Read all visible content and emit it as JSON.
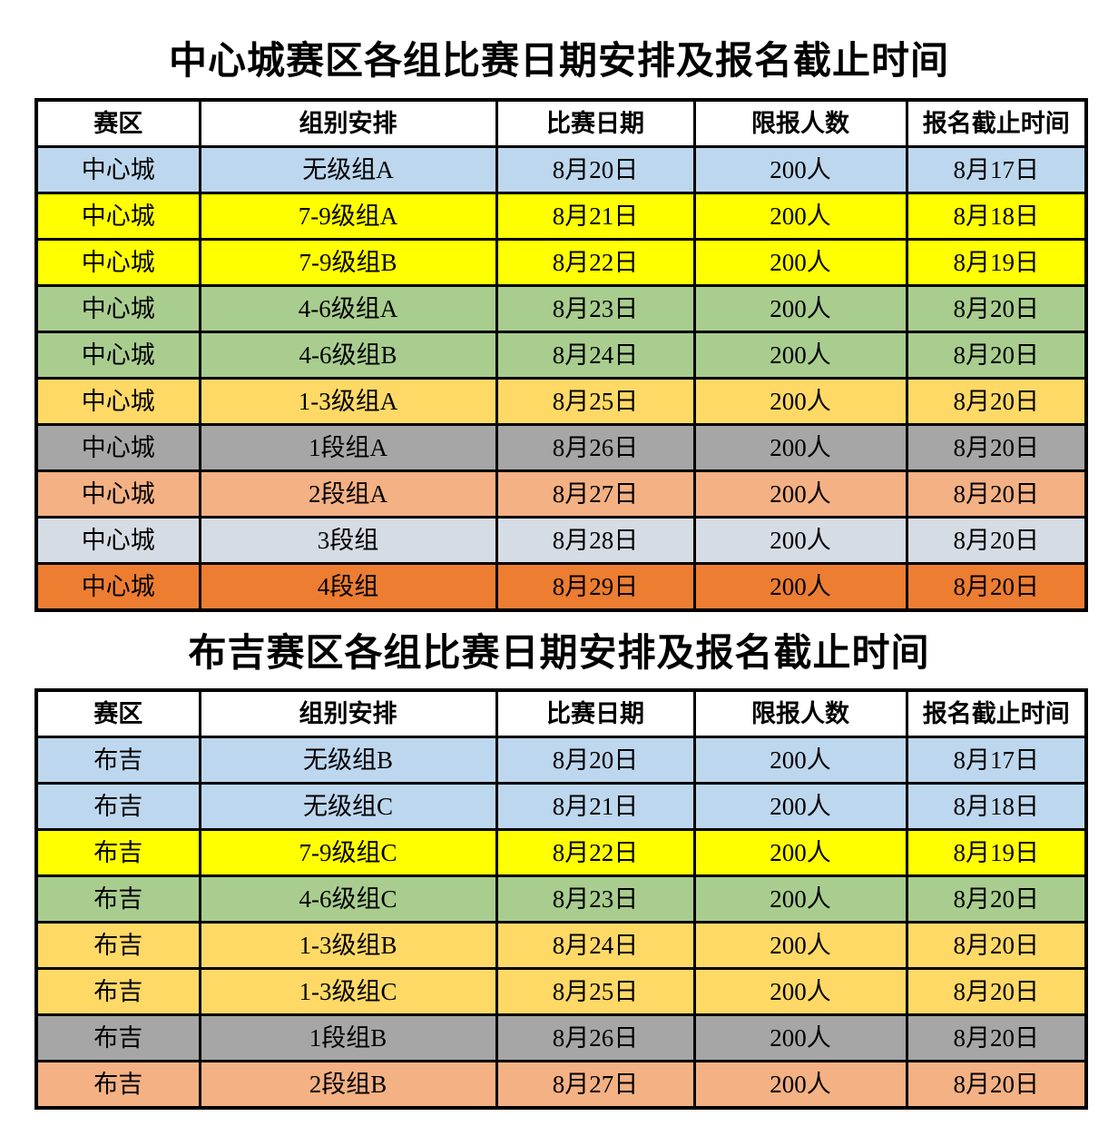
{
  "colors": {
    "blue": "#BDD7EE",
    "yellow": "#FFFF00",
    "green": "#A9CD8E",
    "gold": "#FFD966",
    "gray": "#A6A6A6",
    "salmon": "#F4B183",
    "bluegray": "#D6DCE4",
    "darkorange": "#ED7D31"
  },
  "tables": [
    {
      "title": "中心城赛区各组比赛日期安排及报名截止时间",
      "headers": [
        "赛区",
        "组别安排",
        "比赛日期",
        "限报人数",
        "报名截止时间"
      ],
      "rows": [
        {
          "color": "blue",
          "cells": [
            "中心城",
            "无级组A",
            "8月20日",
            "200人",
            "8月17日"
          ]
        },
        {
          "color": "yellow",
          "cells": [
            "中心城",
            "7-9级组A",
            "8月21日",
            "200人",
            "8月18日"
          ]
        },
        {
          "color": "yellow",
          "cells": [
            "中心城",
            "7-9级组B",
            "8月22日",
            "200人",
            "8月19日"
          ]
        },
        {
          "color": "green",
          "cells": [
            "中心城",
            "4-6级组A",
            "8月23日",
            "200人",
            "8月20日"
          ]
        },
        {
          "color": "green",
          "cells": [
            "中心城",
            "4-6级组B",
            "8月24日",
            "200人",
            "8月20日"
          ]
        },
        {
          "color": "gold",
          "cells": [
            "中心城",
            "1-3级组A",
            "8月25日",
            "200人",
            "8月20日"
          ]
        },
        {
          "color": "gray",
          "cells": [
            "中心城",
            "1段组A",
            "8月26日",
            "200人",
            "8月20日"
          ]
        },
        {
          "color": "salmon",
          "cells": [
            "中心城",
            "2段组A",
            "8月27日",
            "200人",
            "8月20日"
          ]
        },
        {
          "color": "bluegray",
          "cells": [
            "中心城",
            "3段组",
            "8月28日",
            "200人",
            "8月20日"
          ]
        },
        {
          "color": "darkorange",
          "cells": [
            "中心城",
            "4段组",
            "8月29日",
            "200人",
            "8月20日"
          ]
        }
      ]
    },
    {
      "title": "布吉赛区各组比赛日期安排及报名截止时间",
      "headers": [
        "赛区",
        "组别安排",
        "比赛日期",
        "限报人数",
        "报名截止时间"
      ],
      "rows": [
        {
          "color": "blue",
          "cells": [
            "布吉",
            "无级组B",
            "8月20日",
            "200人",
            "8月17日"
          ]
        },
        {
          "color": "blue",
          "cells": [
            "布吉",
            "无级组C",
            "8月21日",
            "200人",
            "8月18日"
          ]
        },
        {
          "color": "yellow",
          "cells": [
            "布吉",
            "7-9级组C",
            "8月22日",
            "200人",
            "8月19日"
          ]
        },
        {
          "color": "green",
          "cells": [
            "布吉",
            "4-6级组C",
            "8月23日",
            "200人",
            "8月20日"
          ]
        },
        {
          "color": "gold",
          "cells": [
            "布吉",
            "1-3级组B",
            "8月24日",
            "200人",
            "8月20日"
          ]
        },
        {
          "color": "gold",
          "cells": [
            "布吉",
            "1-3级组C",
            "8月25日",
            "200人",
            "8月20日"
          ]
        },
        {
          "color": "gray",
          "cells": [
            "布吉",
            "1段组B",
            "8月26日",
            "200人",
            "8月20日"
          ]
        },
        {
          "color": "salmon",
          "cells": [
            "布吉",
            "2段组B",
            "8月27日",
            "200人",
            "8月20日"
          ]
        }
      ]
    }
  ]
}
